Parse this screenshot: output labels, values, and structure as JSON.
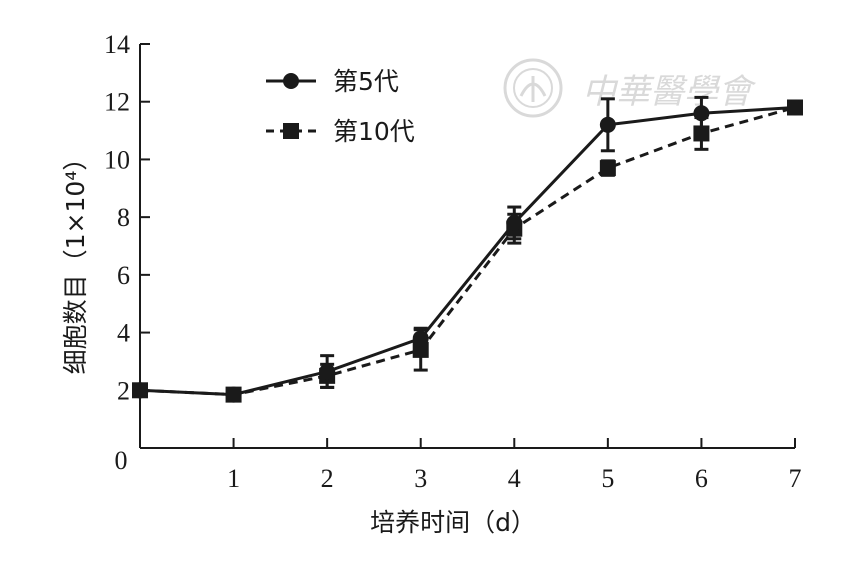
{
  "chart_data": {
    "type": "line",
    "xlabel": "培养时间（d）",
    "ylabel": "细胞数目（1×10⁴）",
    "xlim": [
      0,
      7
    ],
    "ylim": [
      0,
      14
    ],
    "x_ticks": [
      "1",
      "2",
      "3",
      "4",
      "5",
      "6",
      "7"
    ],
    "x_zero_label": "0",
    "y_ticks": [
      "2",
      "4",
      "6",
      "8",
      "10",
      "12",
      "14"
    ],
    "legend_position": "top-left",
    "grid": false,
    "x": [
      0,
      1,
      2,
      3,
      4,
      5,
      6,
      7
    ],
    "series": [
      {
        "name": "第5代",
        "marker": "circle",
        "line_style": "solid",
        "color": "#1a1a1a",
        "values": [
          2.0,
          1.85,
          2.65,
          3.8,
          7.8,
          11.2,
          11.6,
          11.8
        ],
        "errors": [
          0.1,
          0.1,
          0.55,
          0.35,
          0.55,
          0.9,
          0.55,
          0.1
        ]
      },
      {
        "name": "第10代",
        "marker": "square",
        "line_style": "dashed",
        "color": "#1a1a1a",
        "values": [
          2.0,
          1.85,
          2.5,
          3.4,
          7.6,
          9.7,
          10.9,
          11.8
        ],
        "errors": [
          0.1,
          0.1,
          0.4,
          0.7,
          0.5,
          0.25,
          0.55,
          0.1
        ]
      }
    ]
  },
  "watermark": {
    "text": "中華醫學會",
    "logo_icon": "society-seal-icon",
    "color": "#d9d9d9"
  }
}
